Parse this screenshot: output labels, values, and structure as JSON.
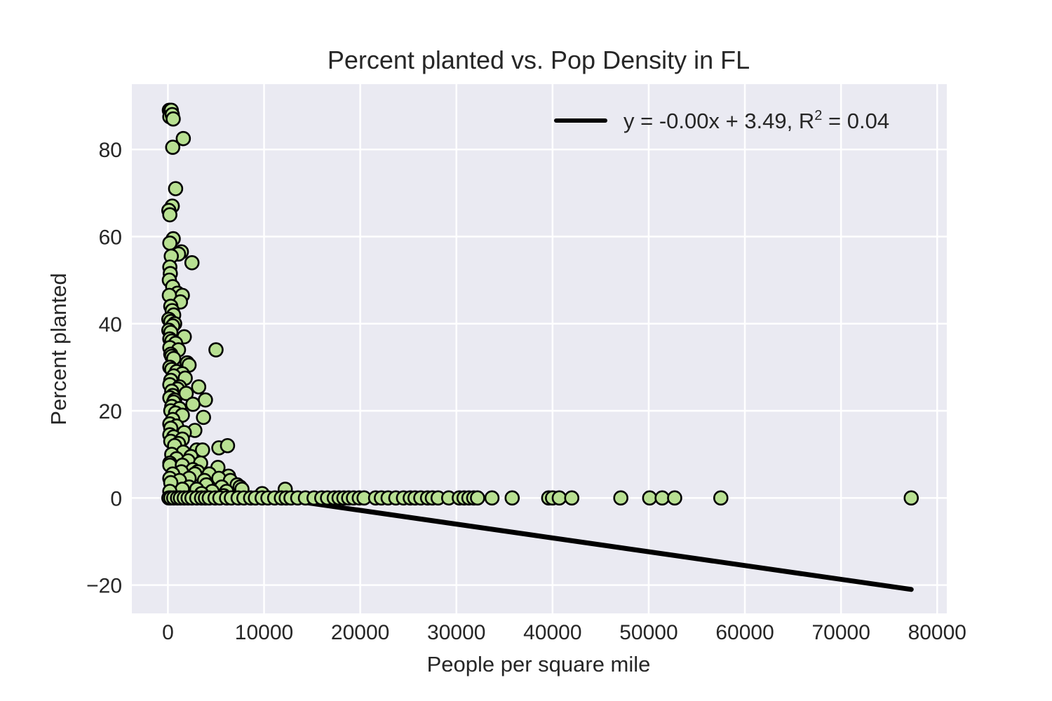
{
  "chart_data": {
    "type": "scatter",
    "title": "Percent planted vs. Pop Density in FL",
    "xlabel": "People per square mile",
    "ylabel": "Percent planted",
    "xlim": [
      -3750,
      81000
    ],
    "ylim": [
      -26.5,
      95
    ],
    "x_ticks": [
      0,
      10000,
      20000,
      30000,
      40000,
      50000,
      60000,
      70000,
      80000
    ],
    "x_tick_labels": [
      "0",
      "10000",
      "20000",
      "30000",
      "40000",
      "50000",
      "60000",
      "70000",
      "80000"
    ],
    "y_ticks": [
      -20,
      0,
      20,
      40,
      60,
      80
    ],
    "y_tick_labels": [
      "−20",
      "0",
      "20",
      "40",
      "60",
      "80"
    ],
    "grid": true,
    "legend_position": "top-right",
    "colors": {
      "background": "#eaeaf2",
      "grid": "#ffffff",
      "marker_fill": "#b8e092",
      "marker_edge": "#000000",
      "fit_line": "#000000"
    },
    "series": [
      {
        "type": "scatter",
        "points": [
          [
            150,
            89
          ],
          [
            250,
            88.5
          ],
          [
            350,
            89
          ],
          [
            200,
            87.5
          ],
          [
            450,
            88
          ],
          [
            550,
            87
          ],
          [
            1600,
            82.5
          ],
          [
            500,
            80.5
          ],
          [
            800,
            71
          ],
          [
            450,
            67
          ],
          [
            100,
            66
          ],
          [
            200,
            65
          ],
          [
            550,
            59.5
          ],
          [
            200,
            58.5
          ],
          [
            1400,
            56.5
          ],
          [
            1100,
            56
          ],
          [
            350,
            55.5
          ],
          [
            2500,
            54
          ],
          [
            200,
            53
          ],
          [
            250,
            51.5
          ],
          [
            150,
            50
          ],
          [
            500,
            48.5
          ],
          [
            1000,
            47
          ],
          [
            1500,
            46.5
          ],
          [
            150,
            46.5
          ],
          [
            1300,
            45
          ],
          [
            300,
            44
          ],
          [
            450,
            43
          ],
          [
            600,
            42
          ],
          [
            100,
            41
          ],
          [
            300,
            40.5
          ],
          [
            700,
            40
          ],
          [
            500,
            39.5
          ],
          [
            100,
            38.5
          ],
          [
            300,
            38
          ],
          [
            1700,
            37
          ],
          [
            200,
            36.5
          ],
          [
            400,
            36
          ],
          [
            800,
            35.5
          ],
          [
            200,
            34.5
          ],
          [
            1100,
            34
          ],
          [
            5000,
            34
          ],
          [
            300,
            33
          ],
          [
            400,
            32.5
          ],
          [
            600,
            32
          ],
          [
            2000,
            31
          ],
          [
            2200,
            30.5
          ],
          [
            200,
            30
          ],
          [
            400,
            29.5
          ],
          [
            900,
            29
          ],
          [
            1500,
            28.5
          ],
          [
            600,
            28
          ],
          [
            1800,
            27.5
          ],
          [
            300,
            27
          ],
          [
            200,
            26
          ],
          [
            1200,
            25.5
          ],
          [
            3200,
            25.5
          ],
          [
            1000,
            25
          ],
          [
            400,
            24.5
          ],
          [
            1900,
            24
          ],
          [
            500,
            23.5
          ],
          [
            200,
            23
          ],
          [
            700,
            22.5
          ],
          [
            3900,
            22.5
          ],
          [
            600,
            22
          ],
          [
            2600,
            21.5
          ],
          [
            400,
            21
          ],
          [
            1200,
            20.5
          ],
          [
            300,
            20
          ],
          [
            800,
            19.5
          ],
          [
            1500,
            19
          ],
          [
            3700,
            18.5
          ],
          [
            500,
            18
          ],
          [
            200,
            17
          ],
          [
            900,
            16.5
          ],
          [
            300,
            16
          ],
          [
            2800,
            15.5
          ],
          [
            1700,
            15
          ],
          [
            200,
            14.5
          ],
          [
            600,
            14
          ],
          [
            1500,
            13.5
          ],
          [
            300,
            13
          ],
          [
            1100,
            12.5
          ],
          [
            700,
            12
          ],
          [
            5300,
            11.5
          ],
          [
            6200,
            12
          ],
          [
            3000,
            11
          ],
          [
            3600,
            11
          ],
          [
            1600,
            10.5
          ],
          [
            400,
            10
          ],
          [
            2400,
            9.5
          ],
          [
            900,
            9
          ],
          [
            2100,
            8.5
          ],
          [
            200,
            8
          ],
          [
            3400,
            8
          ],
          [
            200,
            7.5
          ],
          [
            1500,
            7.5
          ],
          [
            5200,
            7
          ],
          [
            2600,
            6.5
          ],
          [
            3100,
            6
          ],
          [
            1400,
            6
          ],
          [
            500,
            5.5
          ],
          [
            2800,
            5.5
          ],
          [
            4300,
            5.5
          ],
          [
            6300,
            5
          ],
          [
            5300,
            4.5
          ],
          [
            200,
            4.5
          ],
          [
            2200,
            4.5
          ],
          [
            3800,
            4
          ],
          [
            1200,
            4
          ],
          [
            6500,
            4
          ],
          [
            300,
            3.5
          ],
          [
            7200,
            3
          ],
          [
            4000,
            3
          ],
          [
            5600,
            2.5
          ],
          [
            7500,
            2.5
          ],
          [
            2200,
            2.5
          ],
          [
            3000,
            2
          ],
          [
            7700,
            2
          ],
          [
            12200,
            2
          ],
          [
            1500,
            2
          ],
          [
            4600,
            1.5
          ],
          [
            6100,
            1.5
          ],
          [
            200,
            1.5
          ],
          [
            9800,
            1
          ],
          [
            3500,
            1
          ],
          [
            5800,
            0.5
          ],
          [
            100,
            0
          ],
          [
            300,
            0
          ],
          [
            600,
            0
          ],
          [
            1000,
            0
          ],
          [
            1300,
            0
          ],
          [
            1700,
            0
          ],
          [
            2100,
            0
          ],
          [
            2500,
            0
          ],
          [
            3000,
            0
          ],
          [
            3500,
            0
          ],
          [
            3900,
            0
          ],
          [
            4300,
            0
          ],
          [
            4900,
            0
          ],
          [
            5400,
            0
          ],
          [
            6100,
            0
          ],
          [
            6600,
            0
          ],
          [
            7300,
            0
          ],
          [
            7900,
            0
          ],
          [
            8600,
            0
          ],
          [
            9100,
            0
          ],
          [
            9800,
            0
          ],
          [
            10400,
            0
          ],
          [
            11100,
            0
          ],
          [
            11800,
            0
          ],
          [
            12300,
            0
          ],
          [
            12800,
            0
          ],
          [
            13500,
            0
          ],
          [
            14300,
            0
          ],
          [
            15200,
            0
          ],
          [
            16000,
            0
          ],
          [
            16600,
            0
          ],
          [
            17300,
            0
          ],
          [
            17800,
            0
          ],
          [
            18300,
            0
          ],
          [
            18800,
            0
          ],
          [
            19300,
            0
          ],
          [
            19900,
            0
          ],
          [
            20400,
            0
          ],
          [
            21600,
            0
          ],
          [
            22200,
            0
          ],
          [
            22900,
            0
          ],
          [
            23700,
            0
          ],
          [
            24500,
            0
          ],
          [
            25200,
            0
          ],
          [
            25700,
            0
          ],
          [
            26300,
            0
          ],
          [
            27000,
            0
          ],
          [
            27500,
            0
          ],
          [
            28100,
            0
          ],
          [
            29200,
            0
          ],
          [
            30300,
            0
          ],
          [
            30800,
            0
          ],
          [
            31300,
            0
          ],
          [
            31800,
            0
          ],
          [
            32200,
            0
          ],
          [
            33700,
            0
          ],
          [
            35800,
            0
          ],
          [
            39600,
            0
          ],
          [
            40000,
            0
          ],
          [
            40700,
            0
          ],
          [
            42000,
            0
          ],
          [
            47100,
            0
          ],
          [
            50100,
            0
          ],
          [
            51400,
            0
          ],
          [
            52700,
            0
          ],
          [
            57500,
            0
          ],
          [
            77300,
            0
          ]
        ]
      },
      {
        "type": "line",
        "name": "y = -0.00x + 3.49, R",
        "name_superscript": "2",
        "name_suffix": " = 0.04",
        "points": [
          [
            0,
            3.49
          ],
          [
            77300,
            -21
          ]
        ]
      }
    ]
  }
}
